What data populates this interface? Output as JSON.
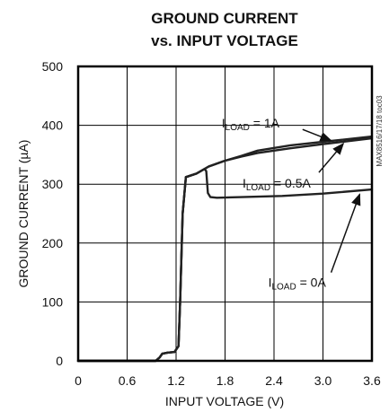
{
  "chart_data": {
    "type": "line",
    "title_line1": "GROUND CURRENT",
    "title_line2": "vs. INPUT VOLTAGE",
    "xlabel": "INPUT VOLTAGE (V)",
    "ylabel": "GROUND CURRENT (µA)",
    "xlim": [
      0,
      3.6
    ],
    "ylim": [
      0,
      500
    ],
    "x_ticks": [
      0,
      0.6,
      1.2,
      1.8,
      2.4,
      3.0,
      3.6
    ],
    "x_tick_labels": [
      "0",
      "0.6",
      "1.2",
      "1.8",
      "2.4",
      "3.0",
      "3.6"
    ],
    "y_ticks": [
      0,
      100,
      200,
      300,
      400,
      500
    ],
    "y_tick_labels": [
      "0",
      "100",
      "200",
      "300",
      "400",
      "500"
    ],
    "grid": true,
    "side_tag": "MAX8516/17/18 toc03",
    "annotations": [
      {
        "main": "I",
        "sub": "LOAD",
        "rest": " = 1A",
        "series": "I_LOAD = 1A",
        "tail": [
          2.75,
          393
        ],
        "head": [
          3.1,
          374
        ]
      },
      {
        "main": "I",
        "sub": "LOAD",
        "rest": " = 0.5A",
        "series": "I_LOAD = 0.5A",
        "tail": [
          2.95,
          320
        ],
        "head": [
          3.25,
          369
        ]
      },
      {
        "main": "I",
        "sub": "LOAD",
        "rest": " = 0A",
        "series": "I_LOAD = 0A",
        "tail": [
          3.1,
          150
        ],
        "head": [
          3.45,
          283
        ]
      }
    ],
    "series": [
      {
        "name": "I_LOAD = 0A",
        "x": [
          0,
          0.95,
          1.0,
          1.03,
          1.1,
          1.18,
          1.23,
          1.25,
          1.28,
          1.32,
          1.45,
          1.55,
          1.57,
          1.59,
          1.62,
          1.7,
          2.0,
          2.5,
          3.0,
          3.6
        ],
        "y": [
          0,
          0,
          6,
          12,
          14,
          15,
          25,
          100,
          250,
          312,
          318,
          326,
          322,
          285,
          278,
          277,
          278,
          280,
          284,
          291
        ]
      },
      {
        "name": "I_LOAD = 0.5A",
        "x": [
          0,
          0.95,
          1.0,
          1.03,
          1.1,
          1.18,
          1.23,
          1.25,
          1.28,
          1.32,
          1.45,
          1.55,
          1.6,
          1.8,
          2.0,
          2.2,
          2.6,
          3.0,
          3.6
        ],
        "y": [
          0,
          0,
          6,
          12,
          14,
          15,
          25,
          100,
          250,
          312,
          318,
          326,
          330,
          340,
          347,
          353,
          361,
          368,
          378
        ]
      },
      {
        "name": "I_LOAD = 1A",
        "x": [
          0,
          0.95,
          1.0,
          1.03,
          1.1,
          1.18,
          1.23,
          1.25,
          1.28,
          1.32,
          1.45,
          1.55,
          1.6,
          1.8,
          2.0,
          2.2,
          2.6,
          3.0,
          3.6
        ],
        "y": [
          0,
          0,
          6,
          12,
          14,
          15,
          25,
          100,
          250,
          312,
          318,
          326,
          330,
          340,
          348,
          357,
          366,
          372,
          381
        ]
      }
    ]
  }
}
